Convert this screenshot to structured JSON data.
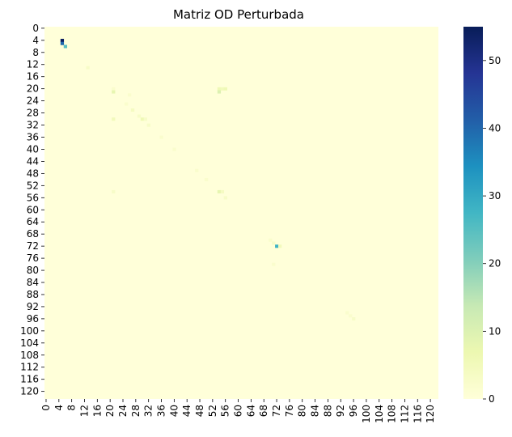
{
  "chart_data": {
    "type": "heatmap",
    "title": "Matriz OD Perturbada",
    "n_rows": 123,
    "n_cols": 123,
    "x_ticks": [
      0,
      4,
      8,
      12,
      16,
      20,
      24,
      28,
      32,
      36,
      40,
      44,
      48,
      52,
      56,
      60,
      64,
      68,
      72,
      76,
      80,
      84,
      88,
      92,
      96,
      100,
      104,
      108,
      112,
      116,
      120
    ],
    "y_ticks": [
      0,
      4,
      8,
      12,
      16,
      20,
      24,
      28,
      32,
      36,
      40,
      44,
      48,
      52,
      56,
      60,
      64,
      68,
      72,
      76,
      80,
      84,
      88,
      92,
      96,
      100,
      104,
      108,
      112,
      116,
      120
    ],
    "background_value": 0,
    "colorbar": {
      "min": 0,
      "max": 55,
      "ticks": [
        0,
        10,
        20,
        30,
        40,
        50
      ]
    },
    "colormap": [
      "#ffffd9",
      "#edf8b1",
      "#c7e9b4",
      "#7fcdbb",
      "#41b6c4",
      "#1d91c0",
      "#225ea8",
      "#253494",
      "#081d58"
    ],
    "cells": [
      {
        "row": 4,
        "col": 5,
        "value": 54
      },
      {
        "row": 5,
        "col": 5,
        "value": 40
      },
      {
        "row": 6,
        "col": 6,
        "value": 25
      },
      {
        "row": 13,
        "col": 13,
        "value": 3
      },
      {
        "row": 20,
        "col": 21,
        "value": 2
      },
      {
        "row": 21,
        "col": 21,
        "value": 8
      },
      {
        "row": 20,
        "col": 54,
        "value": 6
      },
      {
        "row": 20,
        "col": 55,
        "value": 5
      },
      {
        "row": 20,
        "col": 56,
        "value": 6
      },
      {
        "row": 21,
        "col": 54,
        "value": 10
      },
      {
        "row": 22,
        "col": 26,
        "value": 2
      },
      {
        "row": 25,
        "col": 25,
        "value": 2
      },
      {
        "row": 27,
        "col": 27,
        "value": 4
      },
      {
        "row": 29,
        "col": 29,
        "value": 3
      },
      {
        "row": 30,
        "col": 21,
        "value": 5
      },
      {
        "row": 30,
        "col": 30,
        "value": 6
      },
      {
        "row": 30,
        "col": 31,
        "value": 3
      },
      {
        "row": 32,
        "col": 32,
        "value": 3
      },
      {
        "row": 36,
        "col": 36,
        "value": 2
      },
      {
        "row": 40,
        "col": 40,
        "value": 2
      },
      {
        "row": 47,
        "col": 47,
        "value": 2
      },
      {
        "row": 50,
        "col": 50,
        "value": 2
      },
      {
        "row": 54,
        "col": 21,
        "value": 3
      },
      {
        "row": 54,
        "col": 54,
        "value": 8
      },
      {
        "row": 54,
        "col": 55,
        "value": 4
      },
      {
        "row": 56,
        "col": 56,
        "value": 3
      },
      {
        "row": 70,
        "col": 70,
        "value": 2
      },
      {
        "row": 71,
        "col": 71,
        "value": 3
      },
      {
        "row": 72,
        "col": 72,
        "value": 28
      },
      {
        "row": 72,
        "col": 73,
        "value": 5
      },
      {
        "row": 78,
        "col": 71,
        "value": 2
      },
      {
        "row": 94,
        "col": 94,
        "value": 2
      },
      {
        "row": 95,
        "col": 95,
        "value": 2
      },
      {
        "row": 96,
        "col": 96,
        "value": 3
      }
    ]
  }
}
